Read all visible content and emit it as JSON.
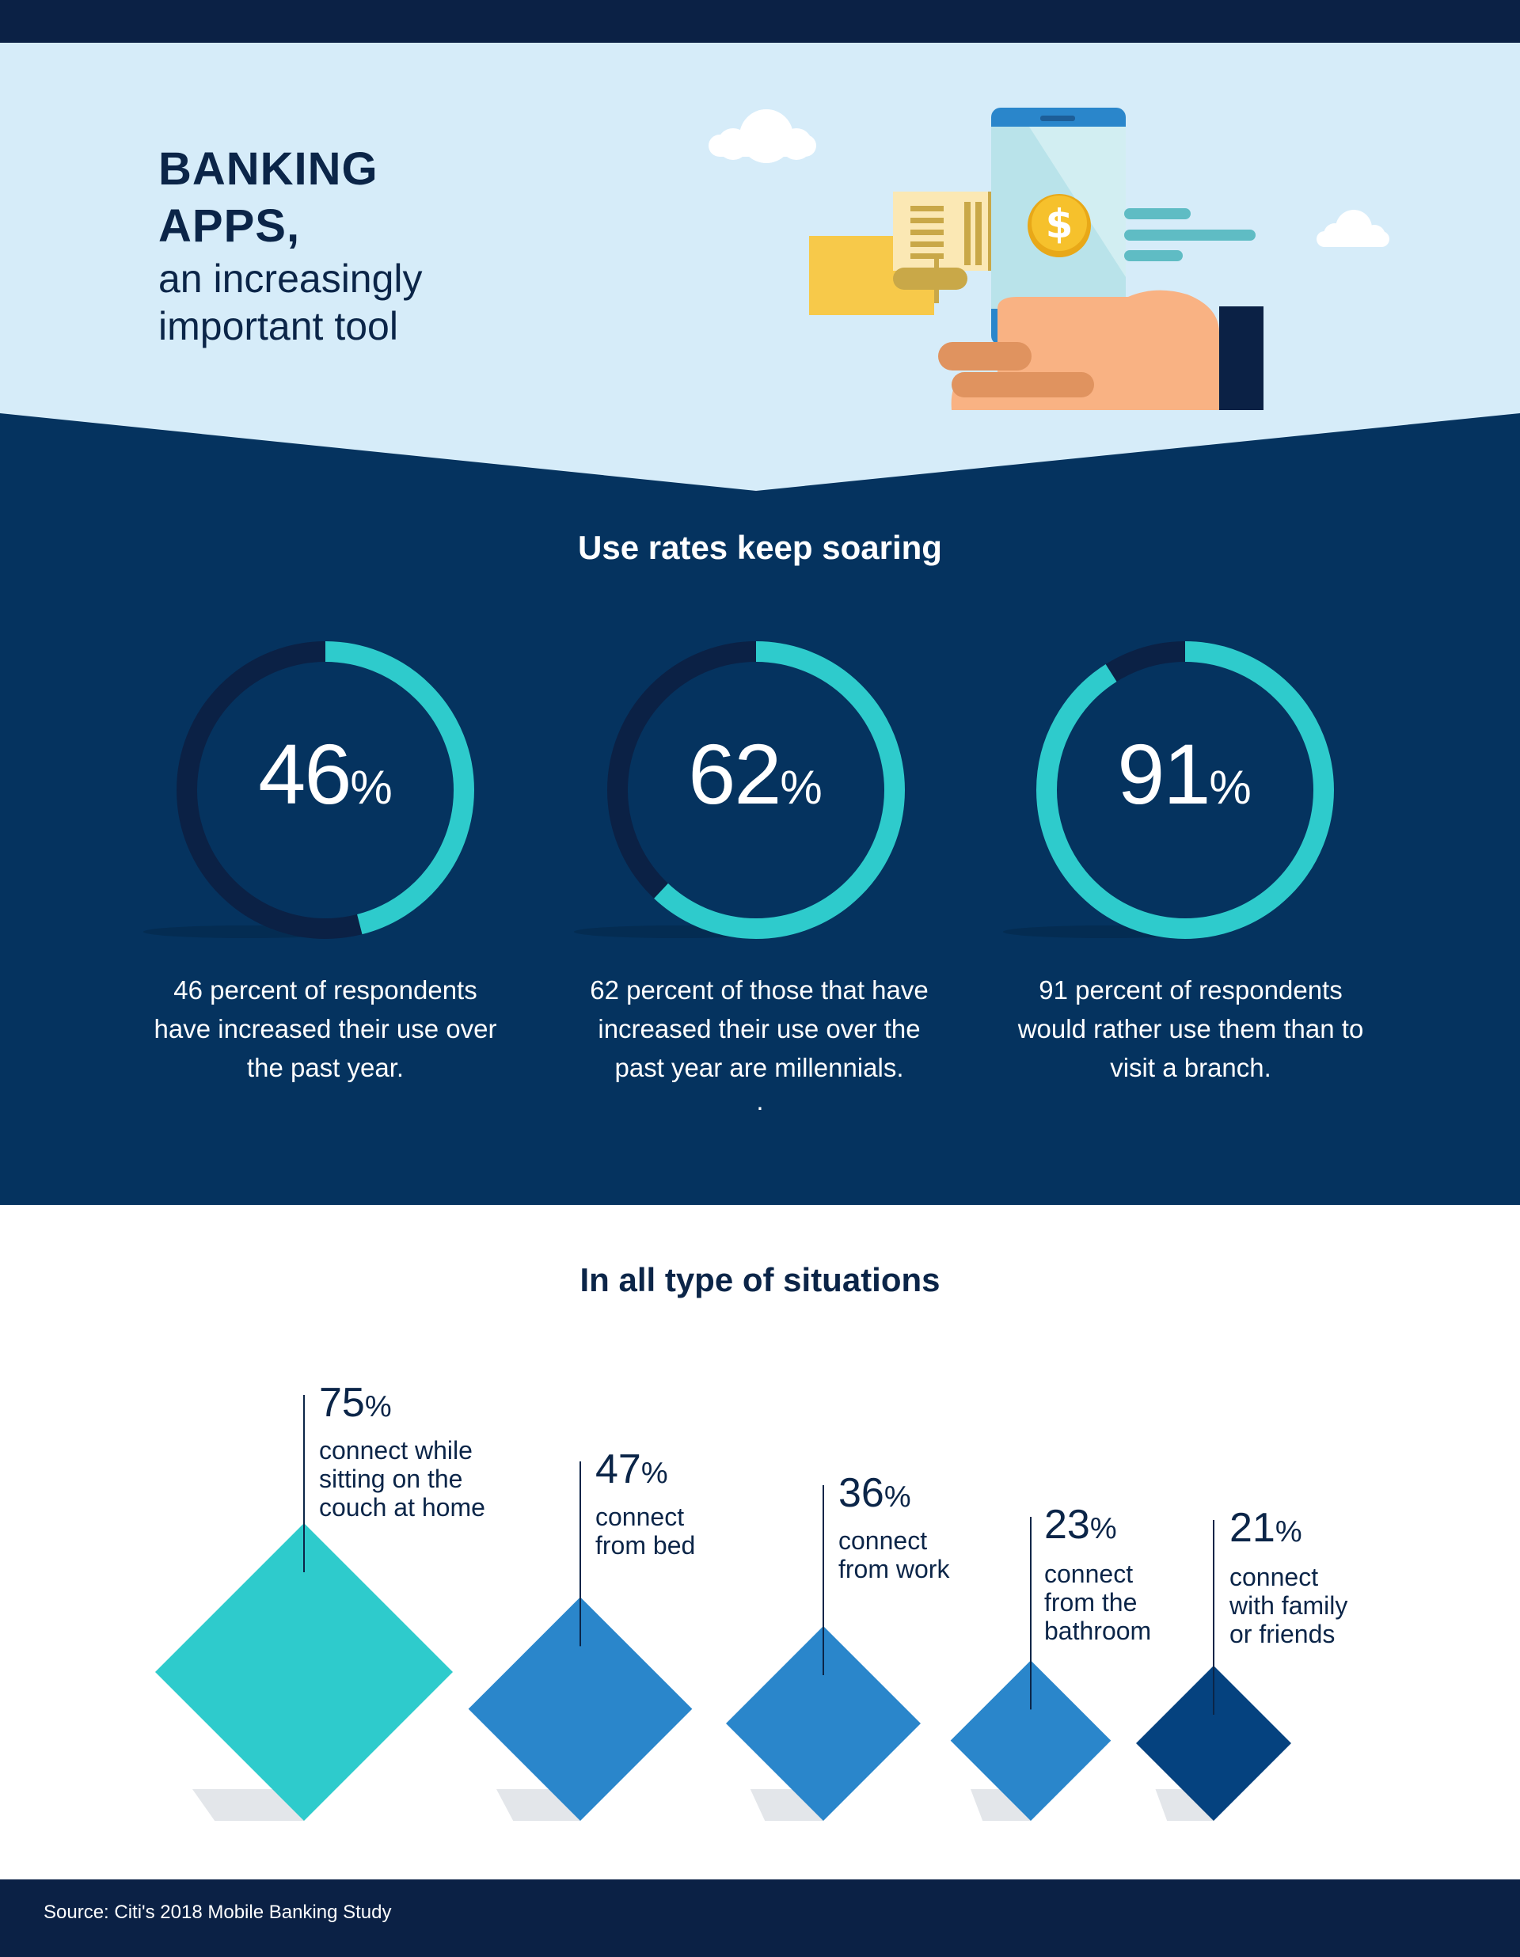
{
  "header": {
    "title_line1": "BANKING",
    "title_line2": "APPS,",
    "subtitle_line1": "an increasingly",
    "subtitle_line2": "important tool"
  },
  "colors": {
    "navy": "#05335f",
    "dark_navy": "#0b2145",
    "light_blue": "#d6ecf9",
    "teal": "#2ecbcc",
    "blue": "#2a86cb",
    "deep_blue": "#05427f"
  },
  "icons": [
    "phone-icon",
    "dollar-coin-icon",
    "receipt-icon",
    "hand-icon",
    "cloud-icon"
  ],
  "chart_data": [
    {
      "type": "pie",
      "title": "Use rates keep soaring",
      "rings": [
        {
          "value": 46,
          "unit": "%",
          "description": "46 percent of respondents have increased their use over the past year."
        },
        {
          "value": 62,
          "unit": "%",
          "description": "62 percent of those that have increased their use over the past year are millennials."
        },
        {
          "value": 91,
          "unit": "%",
          "description": "91 percent of respondents would rather use them than to visit a branch."
        }
      ],
      "extra_mark": "."
    },
    {
      "type": "bar",
      "title": "In all type of situations",
      "unit": "%",
      "categories": [
        "connect while sitting on the couch at home",
        "connect from bed",
        "connect from work",
        "connect from the bathroom",
        "connect with family or friends"
      ],
      "labels": [
        [
          "connect while",
          "sitting on the",
          "couch at home"
        ],
        [
          "connect",
          "from bed"
        ],
        [
          "connect",
          "from work"
        ],
        [
          "connect",
          "from the",
          "bathroom"
        ],
        [
          "connect",
          "with family",
          "or friends"
        ]
      ],
      "values": [
        75,
        47,
        36,
        23,
        21
      ]
    }
  ],
  "footer": {
    "source": "Source: Citi's 2018 Mobile Banking Study"
  }
}
